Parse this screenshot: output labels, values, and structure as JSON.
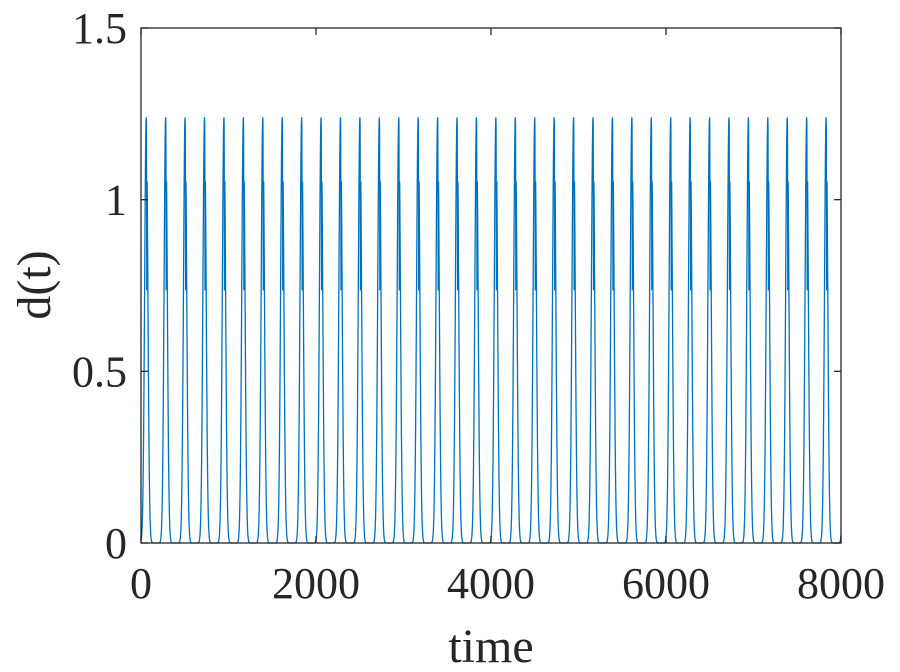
{
  "chart_data": {
    "type": "line",
    "title": "",
    "xlabel": "time",
    "ylabel": "d(t)",
    "xlim": [
      0,
      8000
    ],
    "ylim": [
      0,
      1.5
    ],
    "xticks": [
      0,
      2000,
      4000,
      6000,
      8000
    ],
    "xtick_labels": [
      "0",
      "2000",
      "4000",
      "6000",
      "8000"
    ],
    "yticks": [
      0,
      0.5,
      1,
      1.5
    ],
    "ytick_labels": [
      "0",
      "0.5",
      "1",
      "1.5"
    ],
    "grid": false,
    "legend": "none",
    "series": [
      {
        "color": "#0072bd",
        "pattern": "periodic spikes",
        "period": 222,
        "first_peak_time": 60,
        "peak_value": 1.24,
        "notch_value": 0.8,
        "baseline_value": 0.0,
        "peak_times": [
          60,
          282,
          504,
          726,
          948,
          1170,
          1392,
          1614,
          1836,
          2058,
          2280,
          2502,
          2724,
          2946,
          3168,
          3390,
          3612,
          3834,
          4056,
          4278,
          4500,
          4722,
          4944,
          5166,
          5388,
          5610,
          5832,
          6054,
          6276,
          6498,
          6720,
          6942,
          7164,
          7386,
          7608,
          7830
        ]
      }
    ]
  }
}
